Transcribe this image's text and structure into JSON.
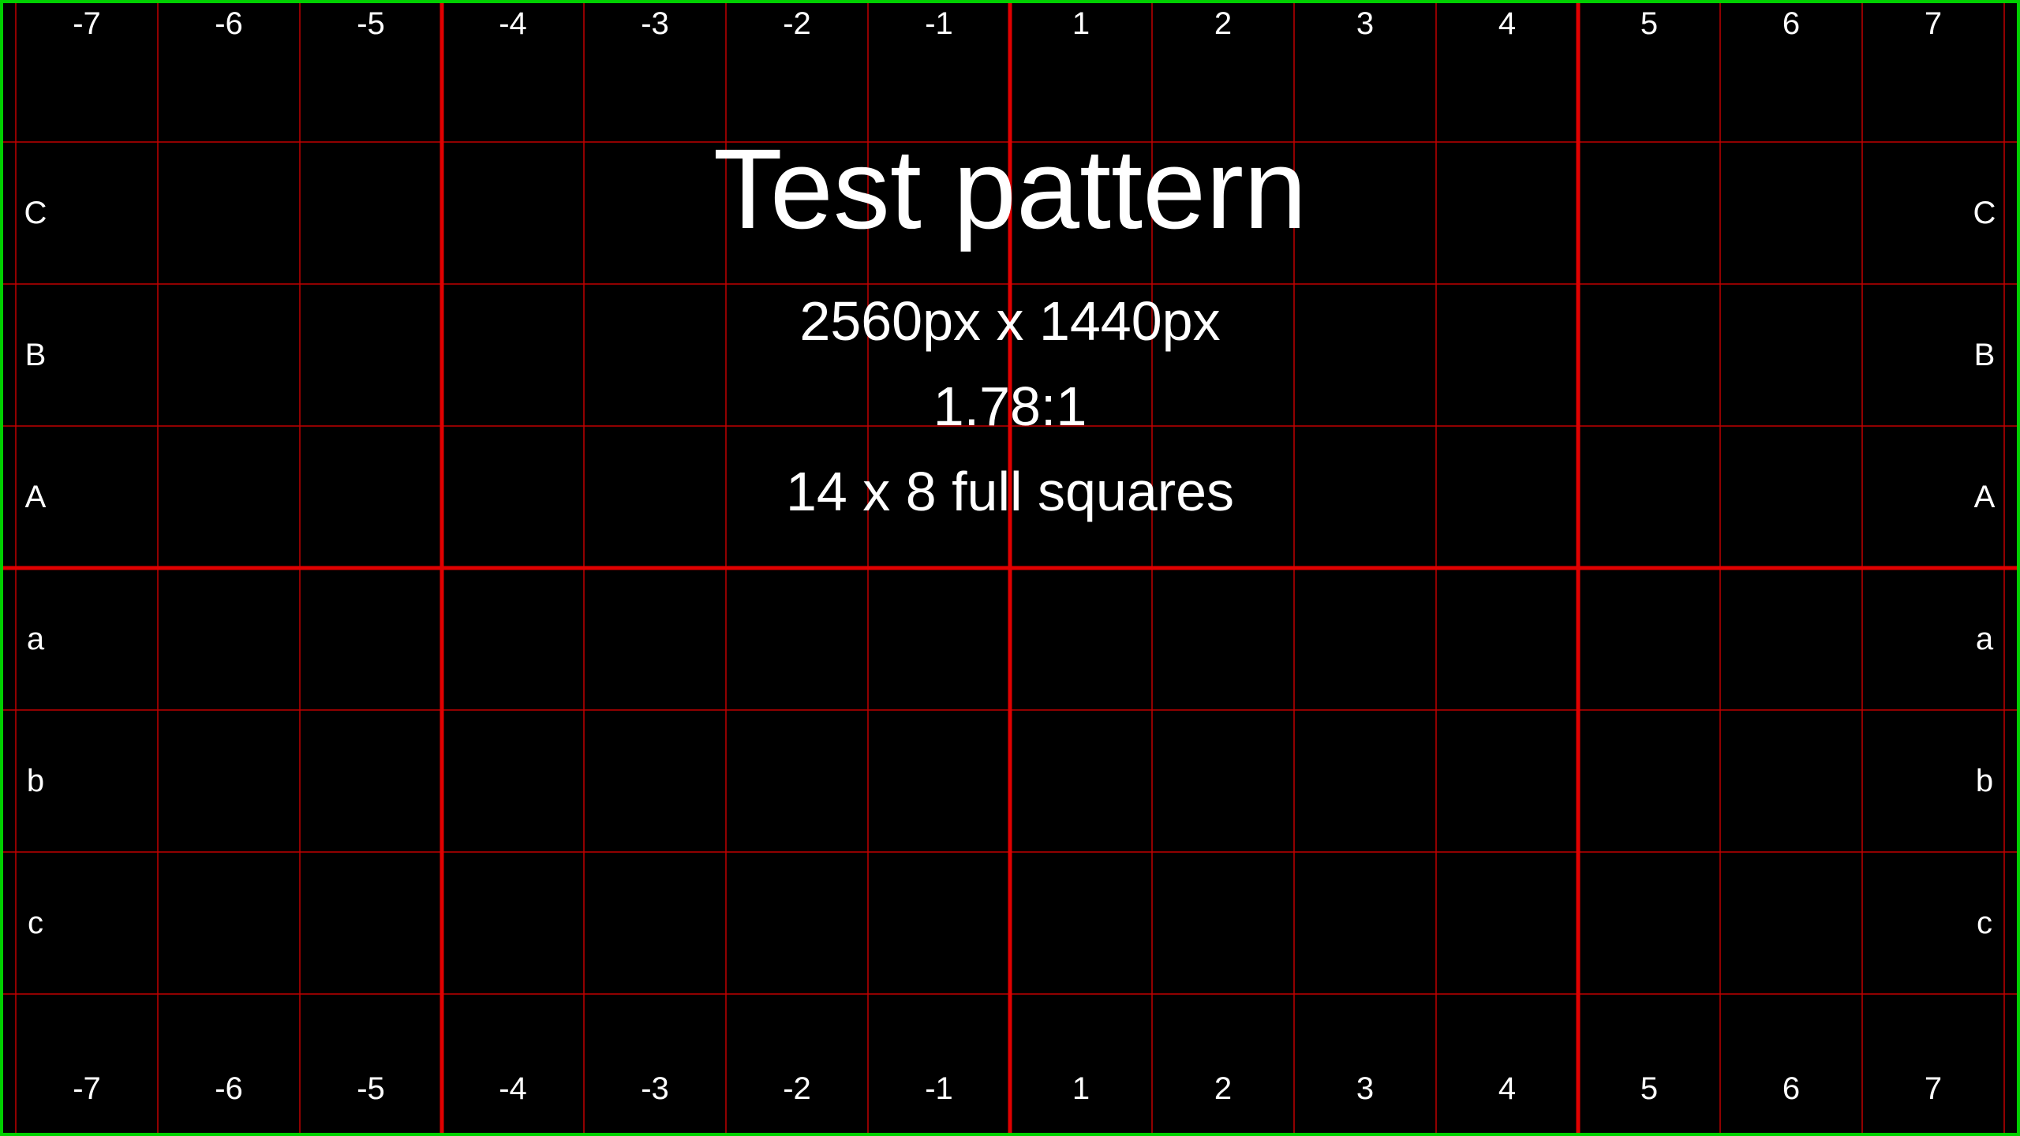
{
  "pattern": {
    "title": "Test pattern",
    "resolution": "2560px x 1440px",
    "aspect_ratio": "1.78:1",
    "squares": "14 x 8 full squares"
  },
  "columns": [
    "-7",
    "-6",
    "-5",
    "-4",
    "-3",
    "-2",
    "-1",
    "1",
    "2",
    "3",
    "4",
    "5",
    "6",
    "7"
  ],
  "rows": [
    "C",
    "B",
    "A",
    "a",
    "b",
    "c"
  ],
  "colors": {
    "background": "#000000",
    "grid_line": "#c00000",
    "major_line": "#e00000",
    "border": "#00d000",
    "text": "#ffffff"
  }
}
